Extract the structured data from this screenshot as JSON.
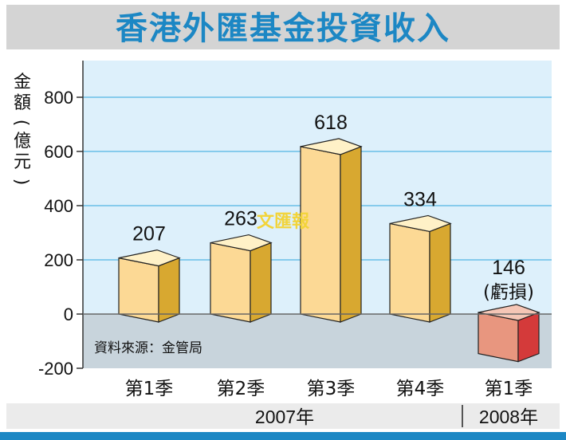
{
  "chart_data": {
    "type": "bar",
    "title": "香港外匯基金投資收入",
    "ylabel": "金額（億元）",
    "ylim": [
      -200,
      900
    ],
    "yticks": [
      800,
      600,
      400,
      200,
      0,
      -200
    ],
    "categories": [
      "第1季",
      "第2季",
      "第3季",
      "第4季",
      "第1季"
    ],
    "values": [
      207,
      263,
      618,
      334,
      -146
    ],
    "value_labels": [
      "207",
      "263",
      "618",
      "334",
      "146"
    ],
    "loss_note": "(虧損)",
    "years": [
      {
        "label": "2007年",
        "span": [
          0,
          3
        ]
      },
      {
        "label": "2008年",
        "span": [
          4,
          4
        ]
      }
    ],
    "source": "資料來源：金管局",
    "watermark": "文匯報",
    "colors": {
      "title": "#1c87c4",
      "plot_bg": "#ddf0fb",
      "negative_bg": "#c8d4dc",
      "gridline": "#52b5e3",
      "bar_front": "#fcd995",
      "bar_side": "#d8a830",
      "bar_top": "#fff1c7",
      "loss_front": "#e8967f",
      "loss_side": "#d43a3a",
      "loss_top": "#f5c6b6",
      "footer_band": "#1c87c4"
    }
  }
}
